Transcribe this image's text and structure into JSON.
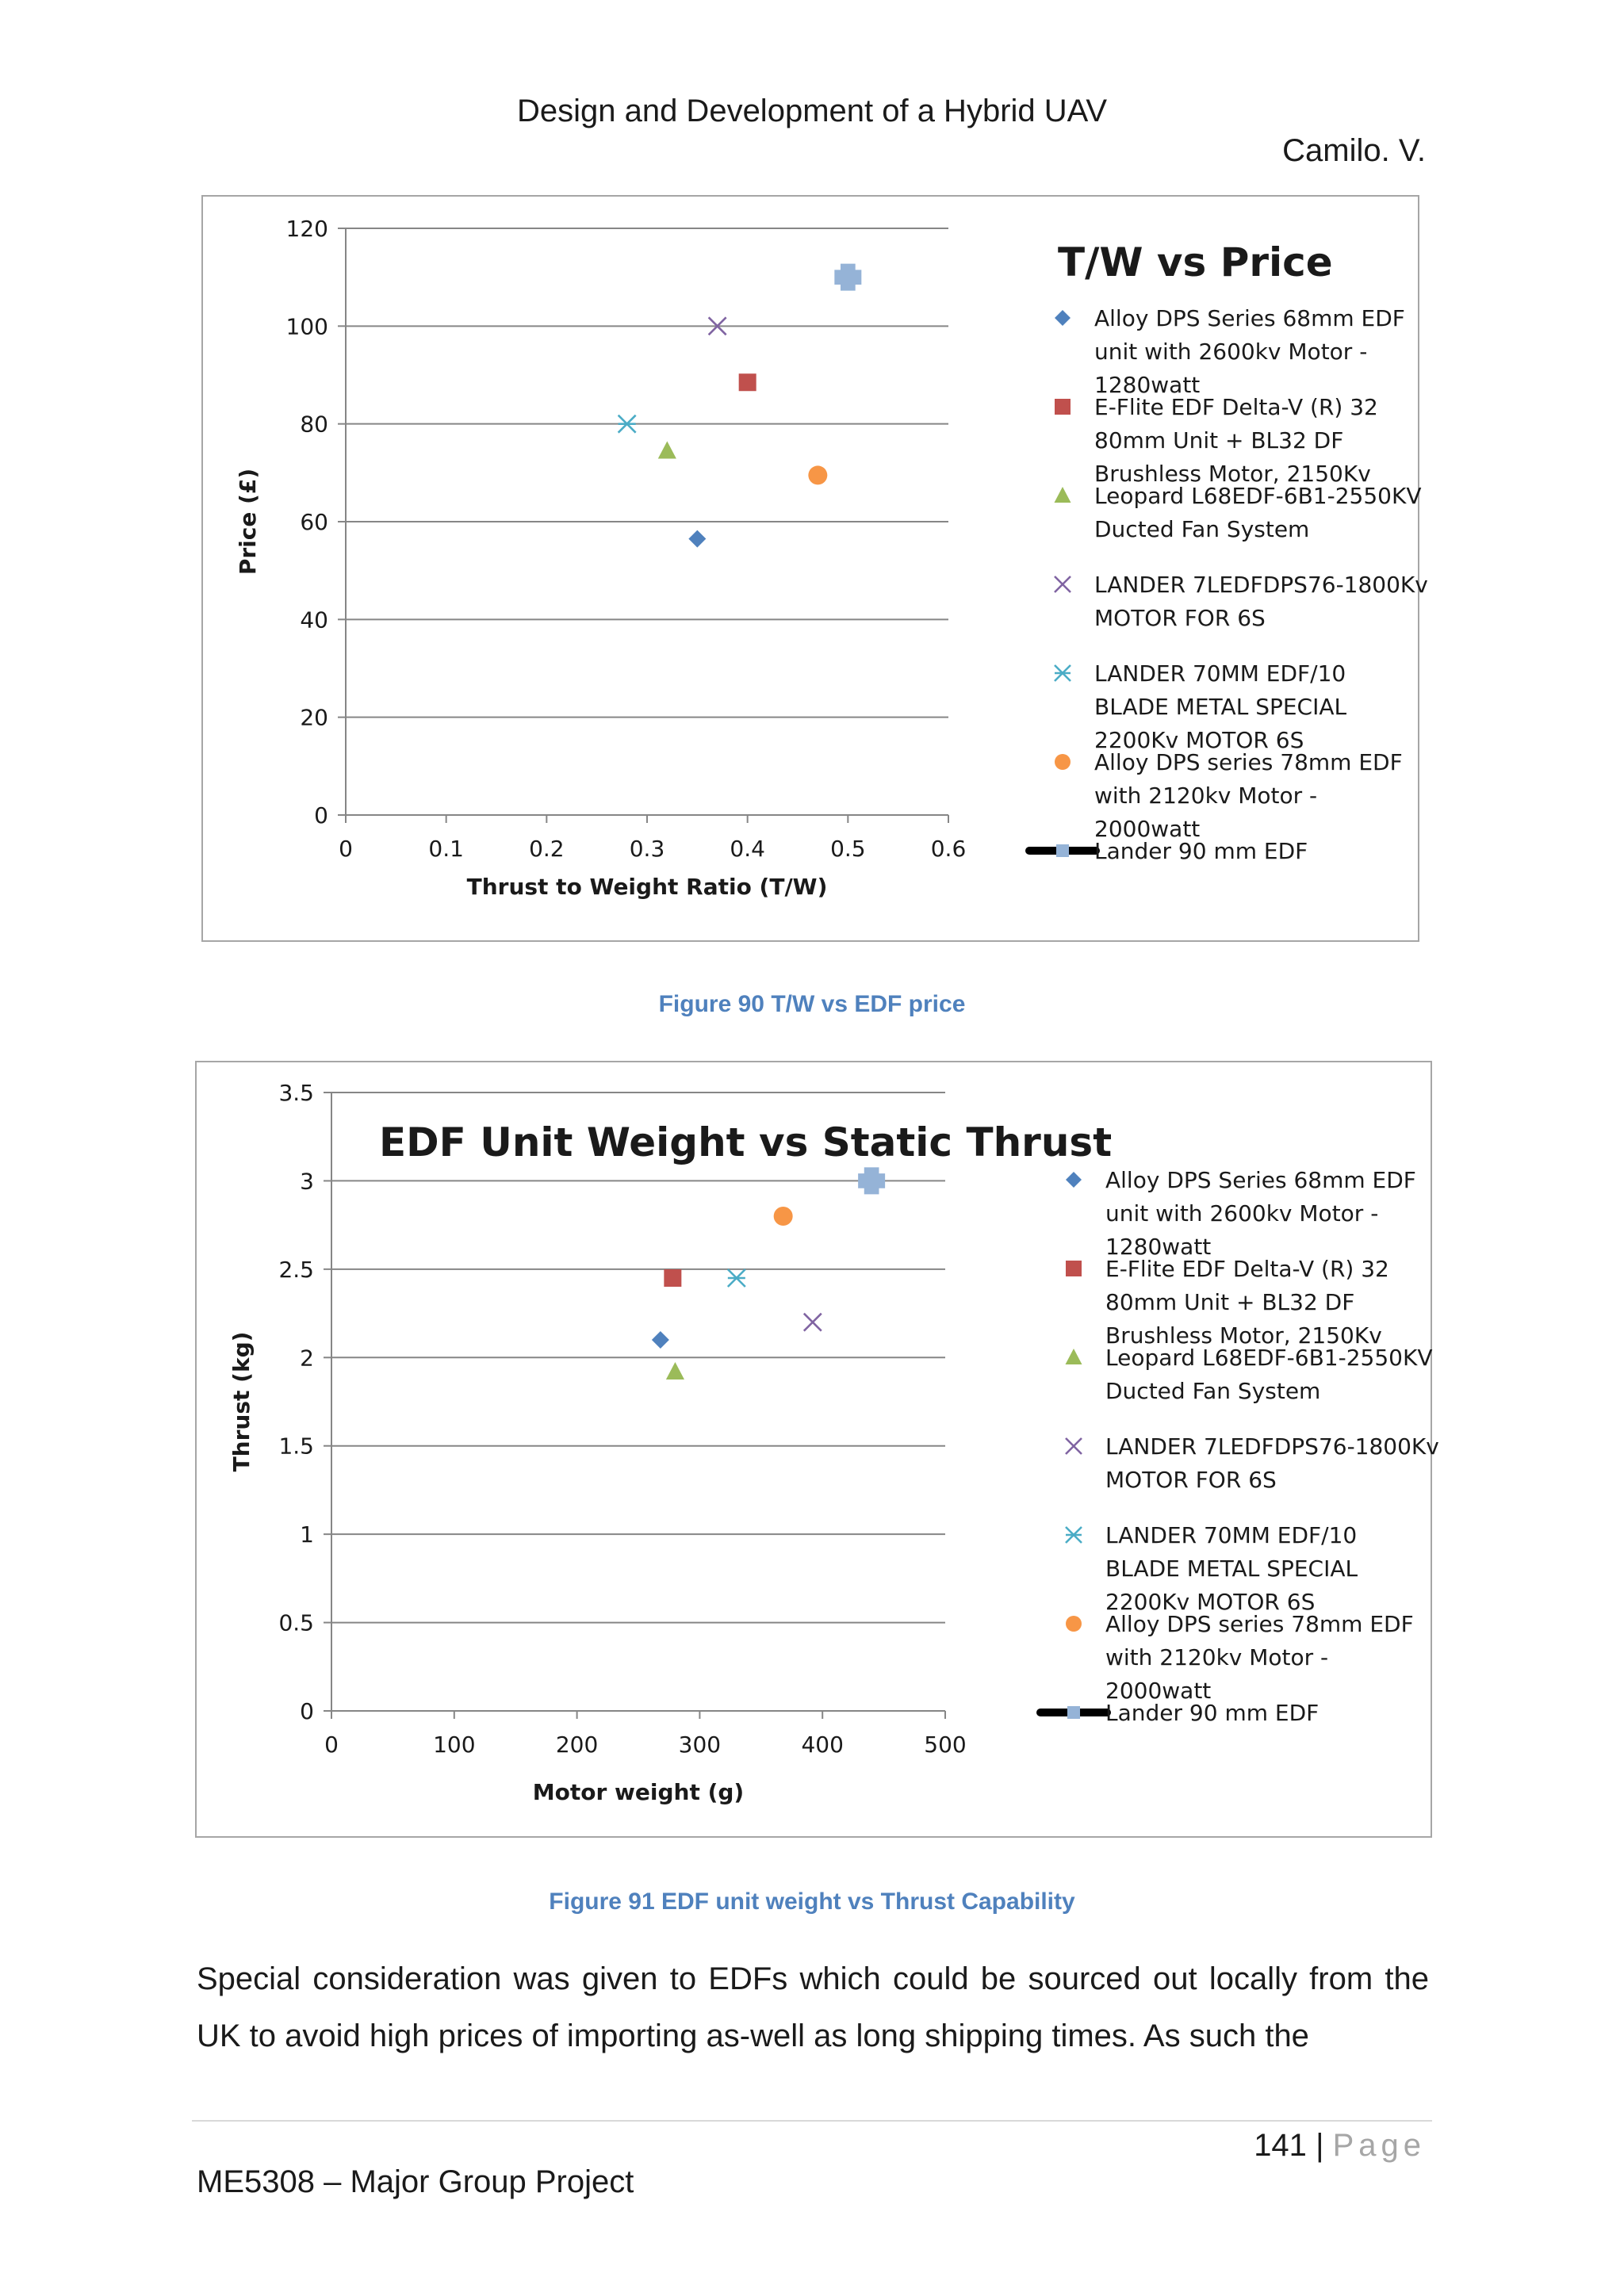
{
  "header": {
    "title": "Design and Development of a Hybrid UAV",
    "author": "Camilo. V."
  },
  "legend_labels": [
    [
      "Alloy DPS Series 68mm EDF",
      "unit with 2600kv Motor -",
      "1280watt"
    ],
    [
      "E-Flite EDF Delta-V (R) 32",
      "80mm Unit + BL32 DF",
      "Brushless Motor, 2150Kv"
    ],
    [
      "Leopard L68EDF-6B1-2550KV",
      "Ducted Fan System"
    ],
    [
      "LANDER 7LEDFDPS76-1800Kv",
      "MOTOR FOR 6S"
    ],
    [
      "LANDER 70MM EDF/10",
      "BLADE METAL SPECIAL",
      "2200Kv MOTOR 6S"
    ],
    [
      "Alloy DPS series 78mm EDF",
      "with 2120kv Motor -",
      "2000watt"
    ],
    [
      "Lander 90 mm EDF"
    ]
  ],
  "colors": {
    "series": [
      "#4f81bd",
      "#c0504d",
      "#9bbb59",
      "#8064a2",
      "#4bacc6",
      "#f79646",
      "#95b3d7"
    ],
    "caption": "#4f81bd",
    "gridline": "#868686",
    "frame": "#a6a6a6"
  },
  "chart_data": [
    {
      "type": "scatter",
      "title": "T/W vs Price",
      "xlabel": "Thrust to Weight Ratio (T/W)",
      "ylabel": "Price (£)",
      "xlim": [
        0,
        0.6
      ],
      "ylim": [
        0,
        120
      ],
      "xticks": [
        "0",
        "0.1",
        "0.2",
        "0.3",
        "0.4",
        "0.5",
        "0.6"
      ],
      "yticks": [
        "0",
        "20",
        "40",
        "60",
        "80",
        "100",
        "120"
      ],
      "grid": "horizontal",
      "legend_position": "right",
      "series": [
        {
          "name": "Alloy DPS Series 68mm EDF unit with 2600kv Motor - 1280watt",
          "marker": "diamond",
          "x": 0.35,
          "y": 56.5
        },
        {
          "name": "E-Flite EDF Delta-V (R) 32 80mm Unit + BL32 DF Brushless Motor, 2150Kv",
          "marker": "square",
          "x": 0.4,
          "y": 88.5
        },
        {
          "name": "Leopard L68EDF-6B1-2550KV Ducted Fan System",
          "marker": "triangle",
          "x": 0.32,
          "y": 74.5
        },
        {
          "name": "LANDER 7LEDFDPS76-1800Kv MOTOR FOR 6S",
          "marker": "x",
          "x": 0.37,
          "y": 100
        },
        {
          "name": "LANDER 70MM EDF/10 BLADE METAL SPECIAL 2200Kv MOTOR 6S",
          "marker": "star",
          "x": 0.28,
          "y": 80
        },
        {
          "name": "Alloy DPS series 78mm EDF with 2120kv Motor - 2000watt",
          "marker": "circle",
          "x": 0.47,
          "y": 69.5
        },
        {
          "name": "Lander 90 mm EDF",
          "marker": "plus",
          "x": 0.5,
          "y": 110
        }
      ]
    },
    {
      "type": "scatter",
      "title": "EDF Unit Weight vs Static Thrust",
      "xlabel": "Motor weight (g)",
      "ylabel": "Thrust (kg)",
      "xlim": [
        0,
        500
      ],
      "ylim": [
        0,
        3.5
      ],
      "xticks": [
        "0",
        "100",
        "200",
        "300",
        "400",
        "500"
      ],
      "yticks": [
        "0",
        "0.5",
        "1",
        "1.5",
        "2",
        "2.5",
        "3",
        "3.5"
      ],
      "grid": "horizontal",
      "legend_position": "right",
      "series": [
        {
          "name": "Alloy DPS Series 68mm EDF unit with 2600kv Motor - 1280watt",
          "marker": "diamond",
          "x": 268,
          "y": 2.1
        },
        {
          "name": "E-Flite EDF Delta-V (R) 32 80mm Unit + BL32 DF Brushless Motor, 2150Kv",
          "marker": "square",
          "x": 278,
          "y": 2.45
        },
        {
          "name": "Leopard L68EDF-6B1-2550KV Ducted Fan System",
          "marker": "triangle",
          "x": 280,
          "y": 1.92
        },
        {
          "name": "LANDER 7LEDFDPS76-1800Kv MOTOR FOR 6S",
          "marker": "x",
          "x": 392,
          "y": 2.2
        },
        {
          "name": "LANDER 70MM EDF/10 BLADE METAL SPECIAL 2200Kv MOTOR 6S",
          "marker": "star",
          "x": 330,
          "y": 2.45
        },
        {
          "name": "Alloy DPS series 78mm EDF with 2120kv Motor - 2000watt",
          "marker": "circle",
          "x": 368,
          "y": 2.8
        },
        {
          "name": "Lander 90 mm EDF",
          "marker": "plus",
          "x": 440,
          "y": 3.0
        }
      ]
    }
  ],
  "captions": {
    "fig90": "Figure 90 T/W vs EDF price",
    "fig91": "Figure 91 EDF unit weight vs Thrust Capability"
  },
  "body": {
    "paragraph": "Special consideration was given to EDFs which could be sourced out locally from the UK to avoid high prices of importing as-well as long shipping times. As such the"
  },
  "footer": {
    "page_number": "141",
    "separator": "|",
    "page_label": "Page",
    "project": "ME5308 – Major Group Project"
  }
}
